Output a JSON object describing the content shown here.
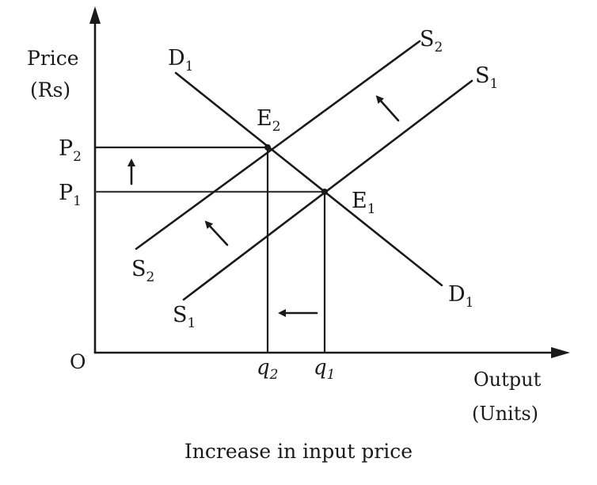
{
  "axes": {
    "y_label_line1": "Price",
    "y_label_line2": "(Rs)",
    "x_label_line1": "Output",
    "x_label_line2": "(Units)",
    "origin": "O"
  },
  "prices": {
    "p2": {
      "letter": "P",
      "sub": "2"
    },
    "p1": {
      "letter": "P",
      "sub": "1"
    }
  },
  "quantities": {
    "q2": {
      "letter": "q",
      "sub": "2"
    },
    "q1": {
      "letter": "q",
      "sub": "1"
    }
  },
  "curves": {
    "demand": {
      "top": {
        "letter": "D",
        "sub": "1"
      },
      "bottom": {
        "letter": "D",
        "sub": "1"
      }
    },
    "supply_new": {
      "top": {
        "letter": "S",
        "sub": "2"
      },
      "bottom": {
        "letter": "S",
        "sub": "2"
      }
    },
    "supply_old": {
      "top": {
        "letter": "S",
        "sub": "1"
      },
      "bottom": {
        "letter": "S",
        "sub": "1"
      }
    }
  },
  "equilibria": {
    "e2": {
      "letter": "E",
      "sub": "2"
    },
    "e1": {
      "letter": "E",
      "sub": "1"
    }
  },
  "caption": "Increase in input price"
}
